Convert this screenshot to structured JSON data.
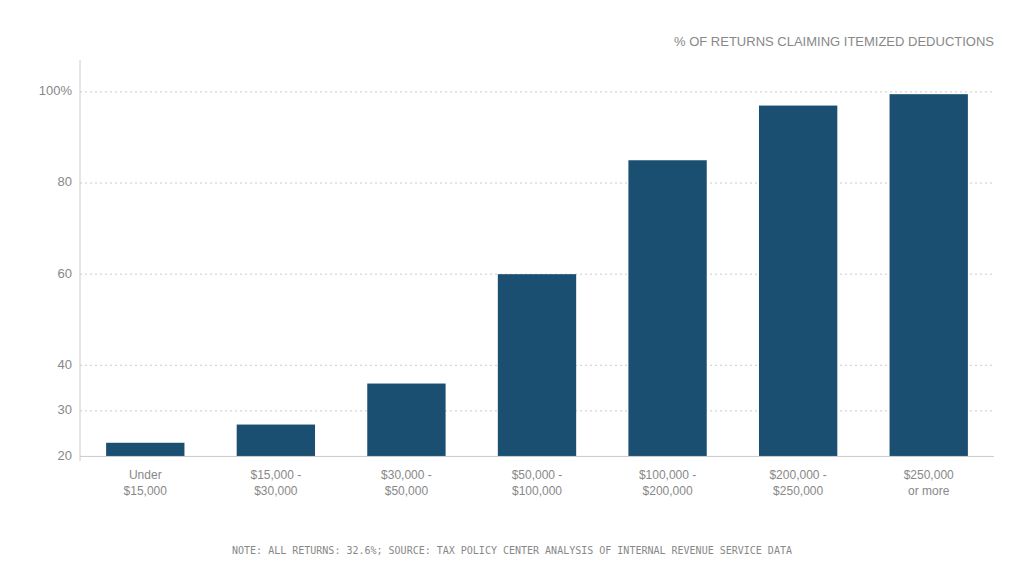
{
  "chart_data": {
    "type": "bar",
    "title": "% OF RETURNS CLAIMING ITEMIZED DEDUCTIONS",
    "categories": [
      "Under\n$15,000",
      "$15,000 -\n$30,000",
      "$30,000 -\n$50,000",
      "$50,000 -\n$100,000",
      "$100,000 -\n$200,000",
      "$200,000 -\n$250,000",
      "$250,000\nor more"
    ],
    "values": [
      23,
      27,
      36,
      60,
      85,
      97,
      99.5
    ],
    "color": "#1b4f72",
    "ylim": [
      19,
      107
    ],
    "yticks": [
      20,
      30,
      40,
      60,
      80,
      {
        "value": 100,
        "label": "100%"
      }
    ],
    "grid": true,
    "annotations": [
      "NOTE: ALL RETURNS: 32.6%; SOURCE: TAX POLICY CENTER ANALYSIS OF INTERNAL REVENUE SERVICE DATA"
    ]
  }
}
